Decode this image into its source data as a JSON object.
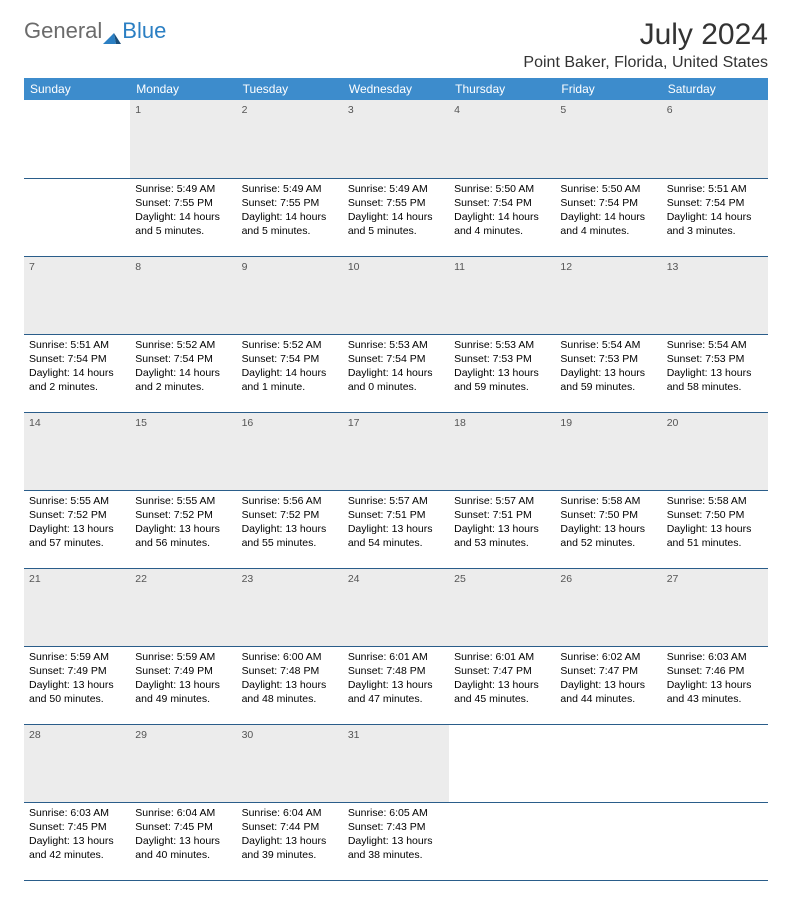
{
  "brand": {
    "part1": "General",
    "part2": "Blue"
  },
  "title": "July 2024",
  "location": "Point Baker, Florida, United States",
  "header_bg": "#3d8ccc",
  "daynum_bg": "#ececec",
  "row_border": "#2a5d8a",
  "days_of_week": [
    "Sunday",
    "Monday",
    "Tuesday",
    "Wednesday",
    "Thursday",
    "Friday",
    "Saturday"
  ],
  "weeks": [
    [
      null,
      {
        "n": "1",
        "sunrise": "5:49 AM",
        "sunset": "7:55 PM",
        "daylight": "14 hours and 5 minutes."
      },
      {
        "n": "2",
        "sunrise": "5:49 AM",
        "sunset": "7:55 PM",
        "daylight": "14 hours and 5 minutes."
      },
      {
        "n": "3",
        "sunrise": "5:49 AM",
        "sunset": "7:55 PM",
        "daylight": "14 hours and 5 minutes."
      },
      {
        "n": "4",
        "sunrise": "5:50 AM",
        "sunset": "7:54 PM",
        "daylight": "14 hours and 4 minutes."
      },
      {
        "n": "5",
        "sunrise": "5:50 AM",
        "sunset": "7:54 PM",
        "daylight": "14 hours and 4 minutes."
      },
      {
        "n": "6",
        "sunrise": "5:51 AM",
        "sunset": "7:54 PM",
        "daylight": "14 hours and 3 minutes."
      }
    ],
    [
      {
        "n": "7",
        "sunrise": "5:51 AM",
        "sunset": "7:54 PM",
        "daylight": "14 hours and 2 minutes."
      },
      {
        "n": "8",
        "sunrise": "5:52 AM",
        "sunset": "7:54 PM",
        "daylight": "14 hours and 2 minutes."
      },
      {
        "n": "9",
        "sunrise": "5:52 AM",
        "sunset": "7:54 PM",
        "daylight": "14 hours and 1 minute."
      },
      {
        "n": "10",
        "sunrise": "5:53 AM",
        "sunset": "7:54 PM",
        "daylight": "14 hours and 0 minutes."
      },
      {
        "n": "11",
        "sunrise": "5:53 AM",
        "sunset": "7:53 PM",
        "daylight": "13 hours and 59 minutes."
      },
      {
        "n": "12",
        "sunrise": "5:54 AM",
        "sunset": "7:53 PM",
        "daylight": "13 hours and 59 minutes."
      },
      {
        "n": "13",
        "sunrise": "5:54 AM",
        "sunset": "7:53 PM",
        "daylight": "13 hours and 58 minutes."
      }
    ],
    [
      {
        "n": "14",
        "sunrise": "5:55 AM",
        "sunset": "7:52 PM",
        "daylight": "13 hours and 57 minutes."
      },
      {
        "n": "15",
        "sunrise": "5:55 AM",
        "sunset": "7:52 PM",
        "daylight": "13 hours and 56 minutes."
      },
      {
        "n": "16",
        "sunrise": "5:56 AM",
        "sunset": "7:52 PM",
        "daylight": "13 hours and 55 minutes."
      },
      {
        "n": "17",
        "sunrise": "5:57 AM",
        "sunset": "7:51 PM",
        "daylight": "13 hours and 54 minutes."
      },
      {
        "n": "18",
        "sunrise": "5:57 AM",
        "sunset": "7:51 PM",
        "daylight": "13 hours and 53 minutes."
      },
      {
        "n": "19",
        "sunrise": "5:58 AM",
        "sunset": "7:50 PM",
        "daylight": "13 hours and 52 minutes."
      },
      {
        "n": "20",
        "sunrise": "5:58 AM",
        "sunset": "7:50 PM",
        "daylight": "13 hours and 51 minutes."
      }
    ],
    [
      {
        "n": "21",
        "sunrise": "5:59 AM",
        "sunset": "7:49 PM",
        "daylight": "13 hours and 50 minutes."
      },
      {
        "n": "22",
        "sunrise": "5:59 AM",
        "sunset": "7:49 PM",
        "daylight": "13 hours and 49 minutes."
      },
      {
        "n": "23",
        "sunrise": "6:00 AM",
        "sunset": "7:48 PM",
        "daylight": "13 hours and 48 minutes."
      },
      {
        "n": "24",
        "sunrise": "6:01 AM",
        "sunset": "7:48 PM",
        "daylight": "13 hours and 47 minutes."
      },
      {
        "n": "25",
        "sunrise": "6:01 AM",
        "sunset": "7:47 PM",
        "daylight": "13 hours and 45 minutes."
      },
      {
        "n": "26",
        "sunrise": "6:02 AM",
        "sunset": "7:47 PM",
        "daylight": "13 hours and 44 minutes."
      },
      {
        "n": "27",
        "sunrise": "6:03 AM",
        "sunset": "7:46 PM",
        "daylight": "13 hours and 43 minutes."
      }
    ],
    [
      {
        "n": "28",
        "sunrise": "6:03 AM",
        "sunset": "7:45 PM",
        "daylight": "13 hours and 42 minutes."
      },
      {
        "n": "29",
        "sunrise": "6:04 AM",
        "sunset": "7:45 PM",
        "daylight": "13 hours and 40 minutes."
      },
      {
        "n": "30",
        "sunrise": "6:04 AM",
        "sunset": "7:44 PM",
        "daylight": "13 hours and 39 minutes."
      },
      {
        "n": "31",
        "sunrise": "6:05 AM",
        "sunset": "7:43 PM",
        "daylight": "13 hours and 38 minutes."
      },
      null,
      null,
      null
    ]
  ],
  "labels": {
    "sunrise_prefix": "Sunrise: ",
    "sunset_prefix": "Sunset: ",
    "daylight_prefix": "Daylight: "
  }
}
